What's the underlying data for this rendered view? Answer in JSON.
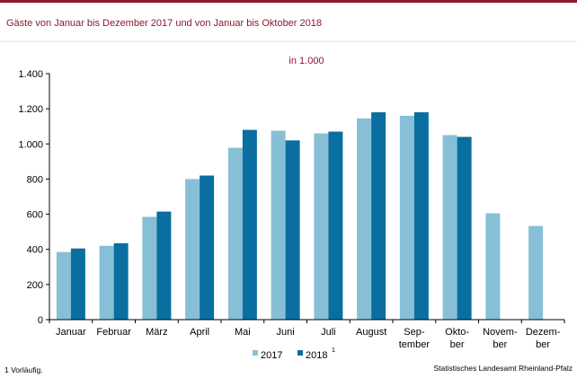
{
  "header": {
    "title": "Gäste  von  Januar  bis  Dezember  2017  und  von  Januar  bis  Oktober  2018"
  },
  "footnote": "1 Vorläufig.",
  "source": "Statistisches Landesamt Rheinland-Pfalz",
  "colors": {
    "accent": "#8b1a2e",
    "series_2017": "#87bfd6",
    "series_2018": "#0a6fa0"
  },
  "chart_data": {
    "type": "bar",
    "unit_label": "in 1.000",
    "categories": [
      [
        "Januar"
      ],
      [
        "Februar"
      ],
      [
        "März"
      ],
      [
        "April"
      ],
      [
        "Mai"
      ],
      [
        "Juni"
      ],
      [
        "Juli"
      ],
      [
        "August"
      ],
      [
        "Sep-",
        "tember"
      ],
      [
        "Okto-",
        "ber"
      ],
      [
        "Novem-",
        "ber"
      ],
      [
        "Dezem-",
        "ber"
      ]
    ],
    "series": [
      {
        "name": "2017",
        "values": [
          385,
          420,
          585,
          800,
          978,
          1075,
          1060,
          1145,
          1160,
          1050,
          605,
          533
        ]
      },
      {
        "name": "2018",
        "name_suffix": "1",
        "values": [
          405,
          435,
          615,
          820,
          1080,
          1020,
          1070,
          1180,
          1180,
          1040,
          null,
          null
        ]
      }
    ],
    "ylim": [
      0,
      1400
    ],
    "yticks": [
      0,
      200,
      400,
      600,
      800,
      1000,
      1200,
      1400
    ],
    "ytick_labels": [
      "0",
      "200",
      "400",
      "600",
      "800",
      "1.000",
      "1.200",
      "1.400"
    ],
    "grid": false,
    "legend": "bottom"
  }
}
